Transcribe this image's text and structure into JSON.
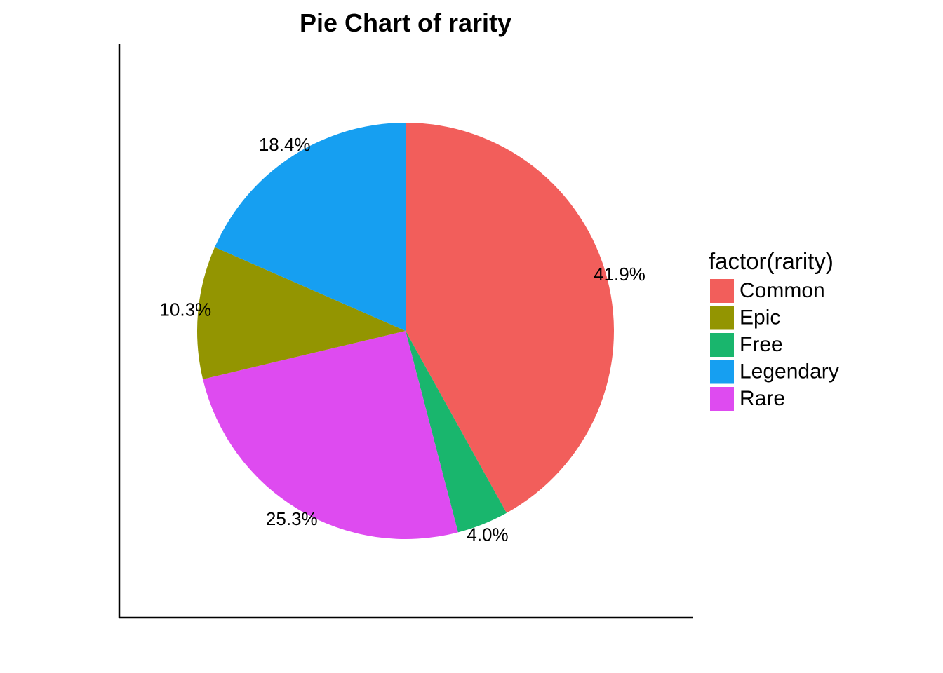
{
  "chart_data": {
    "type": "pie",
    "title": "Pie Chart of rarity",
    "legend_title": "factor(rarity)",
    "legend_position": "right",
    "categories": [
      "Common",
      "Epic",
      "Free",
      "Legendary",
      "Rare"
    ],
    "values": [
      41.9,
      10.3,
      4.0,
      18.4,
      25.3
    ],
    "labels": [
      "41.9%",
      "10.3%",
      "4.0%",
      "18.4%",
      "25.3%"
    ],
    "colors": [
      "#F25E5B",
      "#939501",
      "#19B66D",
      "#169FF1",
      "#DE4BF0"
    ],
    "slice_order_clockwise_from_top": [
      "Common",
      "Free",
      "Rare",
      "Epic",
      "Legendary"
    ],
    "grid": false
  }
}
